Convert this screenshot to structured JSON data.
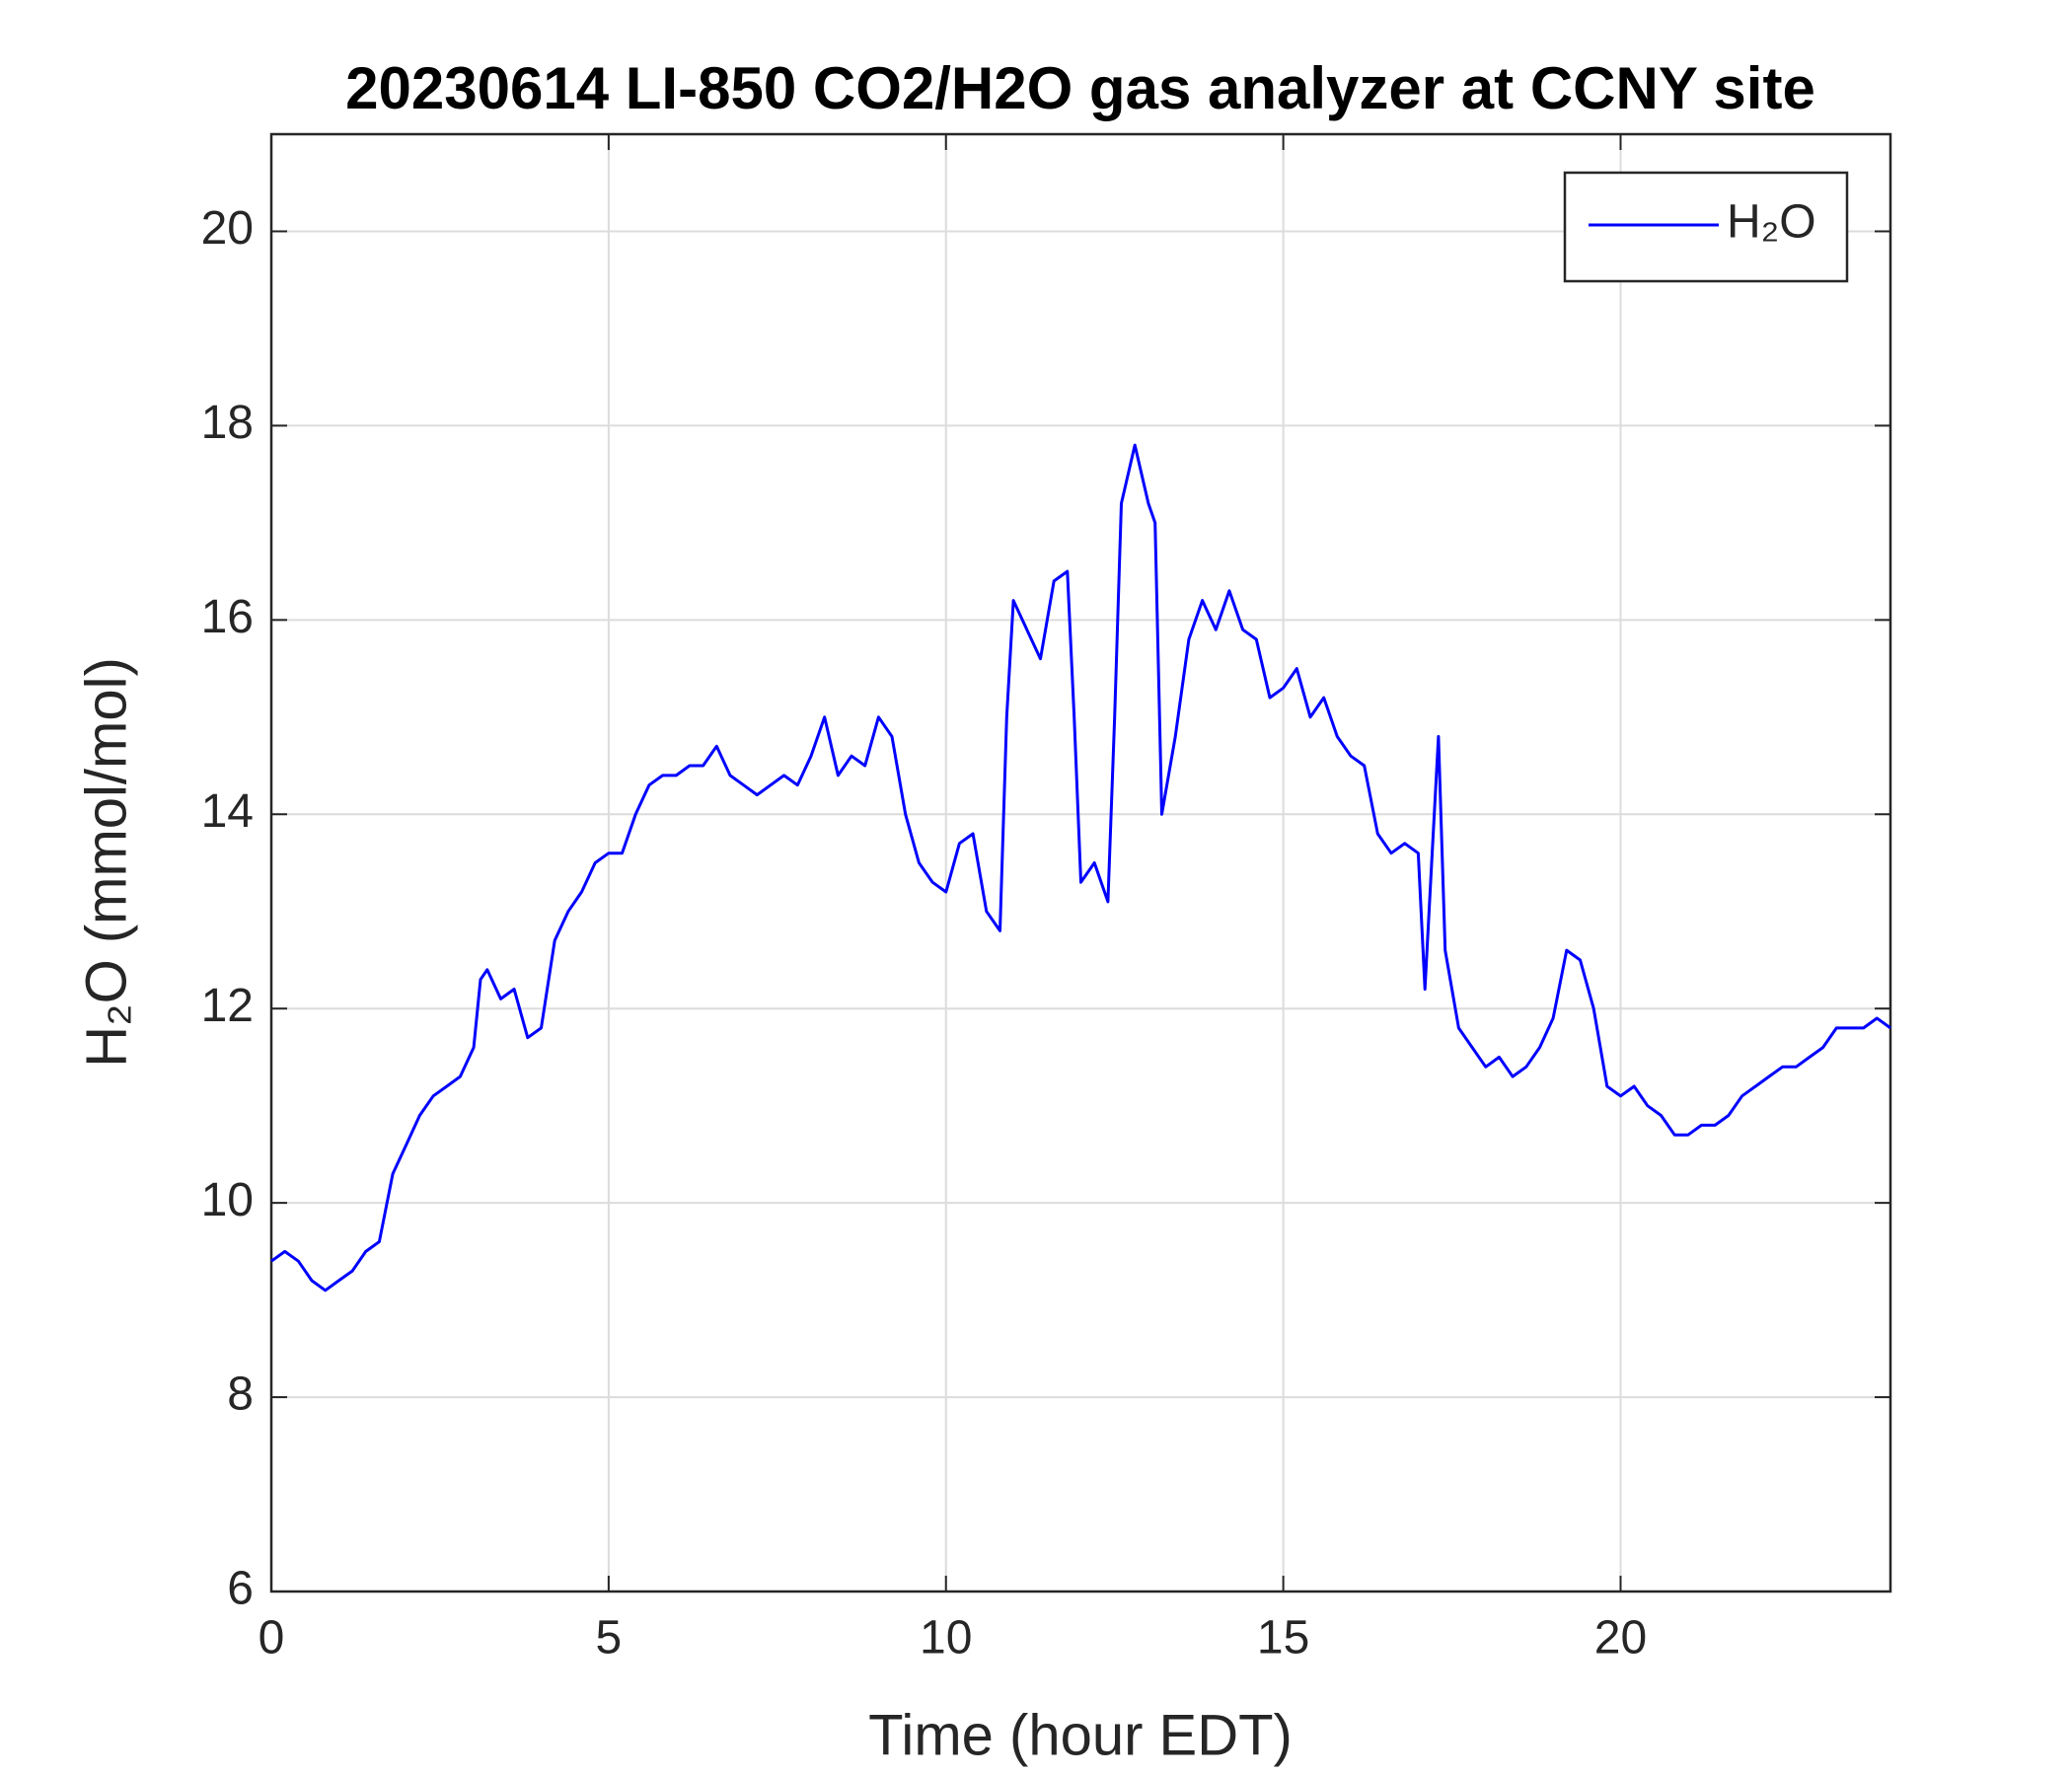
{
  "chart_data": {
    "type": "line",
    "title": "20230614 LI-850 CO2/H2O gas analyzer at CCNY site",
    "x_label": "Time (hour EDT)",
    "y_label": "H₂O (mmol/mol)",
    "x": [
      0,
      0.2,
      0.4,
      0.6,
      0.8,
      1.0,
      1.2,
      1.4,
      1.6,
      1.8,
      2.0,
      2.2,
      2.4,
      2.6,
      2.8,
      3.0,
      3.1,
      3.2,
      3.4,
      3.6,
      3.8,
      4.0,
      4.2,
      4.4,
      4.6,
      4.8,
      5.0,
      5.2,
      5.4,
      5.6,
      5.8,
      6.0,
      6.2,
      6.4,
      6.6,
      6.8,
      7.0,
      7.2,
      7.4,
      7.6,
      7.8,
      8.0,
      8.2,
      8.4,
      8.6,
      8.8,
      9.0,
      9.2,
      9.4,
      9.6,
      9.8,
      10.0,
      10.2,
      10.4,
      10.6,
      10.8,
      10.9,
      11.0,
      11.2,
      11.4,
      11.6,
      11.8,
      11.9,
      12.0,
      12.2,
      12.4,
      12.5,
      12.6,
      12.8,
      13.0,
      13.1,
      13.2,
      13.4,
      13.6,
      13.8,
      14.0,
      14.2,
      14.4,
      14.6,
      14.8,
      15.0,
      15.2,
      15.4,
      15.6,
      15.8,
      16.0,
      16.2,
      16.4,
      16.6,
      16.8,
      17.0,
      17.1,
      17.2,
      17.3,
      17.4,
      17.6,
      17.8,
      18.0,
      18.2,
      18.4,
      18.6,
      18.8,
      19.0,
      19.2,
      19.4,
      19.6,
      19.8,
      20.0,
      20.2,
      20.4,
      20.6,
      20.8,
      21.0,
      21.2,
      21.4,
      21.6,
      21.8,
      22.0,
      22.2,
      22.4,
      22.6,
      22.8,
      23.0,
      23.2,
      23.4,
      23.6,
      23.8,
      24.0
    ],
    "series": [
      {
        "name": "H₂O",
        "color": "#0000ff",
        "values": [
          9.4,
          9.5,
          9.4,
          9.2,
          9.1,
          9.2,
          9.3,
          9.5,
          9.6,
          10.3,
          10.6,
          10.9,
          11.1,
          11.2,
          11.3,
          11.6,
          12.3,
          12.4,
          12.1,
          12.2,
          11.7,
          11.8,
          12.7,
          13.0,
          13.2,
          13.5,
          13.6,
          13.6,
          14.0,
          14.3,
          14.4,
          14.4,
          14.5,
          14.5,
          14.7,
          14.4,
          14.3,
          14.2,
          14.3,
          14.4,
          14.3,
          14.6,
          15.0,
          14.4,
          14.6,
          14.5,
          15.0,
          14.8,
          14.0,
          13.5,
          13.3,
          13.2,
          13.7,
          13.8,
          13.0,
          12.8,
          15.0,
          16.2,
          15.9,
          15.6,
          16.4,
          16.5,
          15.0,
          13.3,
          13.5,
          13.1,
          15.0,
          17.2,
          17.8,
          17.2,
          17.0,
          14.0,
          14.8,
          15.8,
          16.2,
          15.9,
          16.3,
          15.9,
          15.8,
          15.2,
          15.3,
          15.5,
          15.0,
          15.2,
          14.8,
          14.6,
          14.5,
          13.8,
          13.6,
          13.7,
          13.6,
          12.2,
          13.5,
          14.8,
          12.6,
          11.8,
          11.6,
          11.4,
          11.5,
          11.3,
          11.4,
          11.6,
          11.9,
          12.6,
          12.5,
          12.0,
          11.2,
          11.1,
          11.2,
          11.0,
          10.9,
          10.7,
          10.7,
          10.8,
          10.8,
          10.9,
          11.1,
          11.2,
          11.3,
          11.4,
          11.4,
          11.5,
          11.6,
          11.8,
          11.8,
          11.8,
          11.9,
          11.8
        ]
      }
    ],
    "xlim": [
      0,
      24
    ],
    "xticks": [
      0,
      5,
      10,
      15,
      20
    ],
    "ylim": [
      6,
      21
    ],
    "yticks": [
      6,
      8,
      10,
      12,
      14,
      16,
      18,
      20
    ],
    "grid": true,
    "legend": "northeast"
  }
}
